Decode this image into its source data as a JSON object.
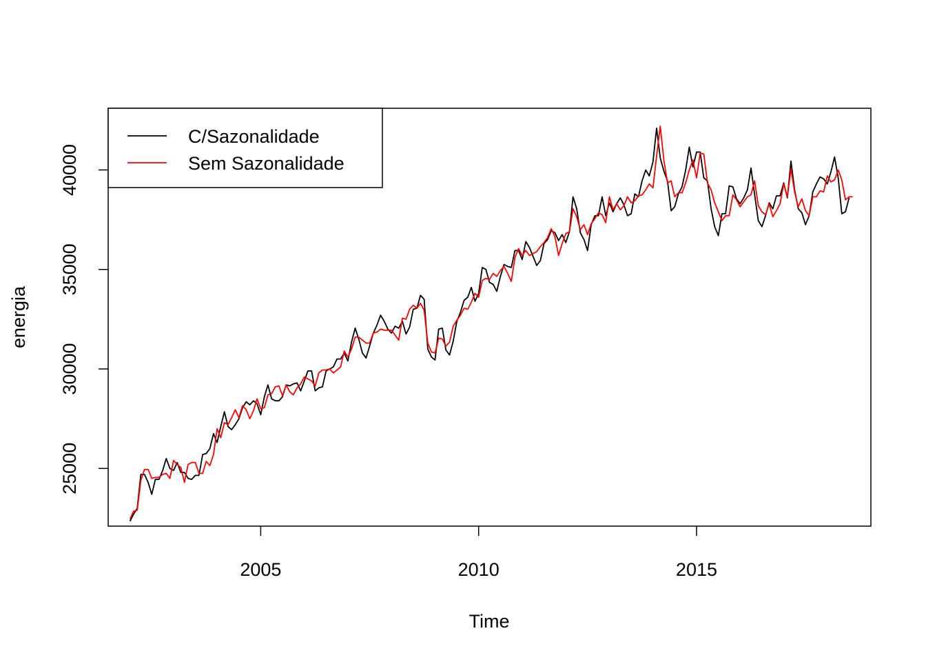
{
  "chart_data": {
    "type": "line",
    "title": "",
    "xlabel": "Time",
    "ylabel": "energia",
    "xlim": [
      2001.5,
      2019.0
    ],
    "ylim": [
      22100,
      43100
    ],
    "x_ticks": [
      2005,
      2010,
      2015
    ],
    "y_ticks": [
      25000,
      30000,
      35000,
      40000
    ],
    "grid": false,
    "legend_position": "top-left",
    "start": 2002.0,
    "frequency": 12,
    "series": [
      {
        "name": "C/Sazonalidade",
        "color": "#000000",
        "values": [
          22350,
          22700,
          23000,
          24700,
          24700,
          24300,
          23700,
          24450,
          24450,
          24900,
          25500,
          25000,
          24900,
          25300,
          24800,
          24800,
          24500,
          24450,
          24650,
          24650,
          25700,
          25750,
          26000,
          26750,
          26300,
          27100,
          27850,
          27100,
          26950,
          27200,
          27500,
          28050,
          28350,
          28200,
          28400,
          28250,
          27700,
          28600,
          29200,
          28500,
          28400,
          28400,
          28600,
          29200,
          29150,
          29250,
          29300,
          28900,
          29400,
          29900,
          29900,
          28900,
          29050,
          29100,
          29900,
          30000,
          30100,
          30500,
          30500,
          30800,
          30400,
          31350,
          32050,
          31500,
          30800,
          30550,
          31150,
          31800,
          32200,
          32700,
          32400,
          32000,
          31800,
          32150,
          32050,
          32400,
          31750,
          32100,
          33000,
          33050,
          33700,
          33500,
          31000,
          30600,
          30450,
          32000,
          32050,
          30950,
          30700,
          31400,
          32400,
          32850,
          33450,
          33600,
          34100,
          33400,
          33800,
          35100,
          35000,
          34350,
          34250,
          33900,
          34650,
          35250,
          35150,
          35100,
          35950,
          35950,
          35500,
          36400,
          36100,
          35650,
          35200,
          35450,
          36300,
          36500,
          36950,
          36850,
          36450,
          36750,
          36350,
          36900,
          38650,
          38050,
          36850,
          36500,
          35950,
          37250,
          37700,
          37700,
          38650,
          37700,
          38350,
          37900,
          38300,
          38600,
          38250,
          37700,
          37800,
          38800,
          38650,
          39450,
          40000,
          39700,
          40400,
          42100,
          40600,
          39950,
          39450,
          37950,
          38150,
          38800,
          39150,
          40000,
          41150,
          40150,
          40900,
          40900,
          39600,
          39450,
          38050,
          37150,
          36700,
          37800,
          37800,
          39200,
          39150,
          38550,
          38300,
          38600,
          39000,
          40100,
          38750,
          37450,
          37150,
          37700,
          38350,
          38050,
          38700,
          38700,
          39350,
          38600,
          40450,
          39000,
          38050,
          37850,
          37250,
          37700,
          38900,
          39300,
          39650,
          39550,
          39300,
          39900,
          40650,
          39600,
          37800,
          37900,
          38600
        ]
      },
      {
        "name": "Sem Sazonalidade",
        "color": "#ff0000",
        "values": [
          22450,
          22850,
          22900,
          24400,
          24950,
          24950,
          24500,
          24550,
          24550,
          24700,
          24750,
          24500,
          25400,
          25200,
          25050,
          24300,
          25200,
          25300,
          25300,
          24750,
          24750,
          25350,
          25150,
          25700,
          27000,
          26550,
          27300,
          27200,
          27550,
          27950,
          27550,
          28150,
          27950,
          27500,
          27900,
          28500,
          28000,
          28050,
          28700,
          28750,
          29100,
          29150,
          28650,
          29200,
          28850,
          28700,
          29050,
          29250,
          29600,
          29500,
          29400,
          29150,
          29800,
          29950,
          29950,
          30000,
          29800,
          29950,
          30100,
          30900,
          30600,
          31000,
          31600,
          31600,
          31450,
          31300,
          31300,
          31800,
          31850,
          32000,
          31950,
          31950,
          31950,
          31700,
          31450,
          32550,
          32500,
          33000,
          33200,
          33050,
          33300,
          32950,
          31300,
          30850,
          30800,
          31550,
          31500,
          31150,
          31350,
          32150,
          32450,
          32700,
          33050,
          33000,
          33350,
          33800,
          33600,
          34450,
          34550,
          34500,
          34800,
          34650,
          34950,
          35150,
          34800,
          34400,
          35600,
          36050,
          35700,
          35950,
          35700,
          35800,
          35900,
          36150,
          36350,
          36600,
          37050,
          36650,
          35700,
          36300,
          36800,
          36900,
          38050,
          37650,
          37000,
          37250,
          36750,
          37300,
          37550,
          37850,
          37750,
          37350,
          38650,
          38000,
          38300,
          38000,
          38200,
          38650,
          38350,
          38450,
          38700,
          38750,
          39000,
          39300,
          39100,
          40700,
          42200,
          40500,
          39350,
          39450,
          38650,
          38850,
          38850,
          39350,
          40000,
          40500,
          39600,
          40850,
          40800,
          39350,
          39000,
          38350,
          37900,
          37450,
          37700,
          37700,
          38750,
          38500,
          38150,
          38400,
          38650,
          38750,
          39450,
          38200,
          37900,
          37750,
          38300,
          37650,
          37950,
          38300,
          39300,
          38650,
          40050,
          38900,
          38150,
          38550,
          37950,
          37700,
          38650,
          38650,
          38950,
          38900,
          39700,
          39400,
          39500,
          40000,
          39500,
          38500,
          38650,
          38650
        ]
      }
    ]
  }
}
